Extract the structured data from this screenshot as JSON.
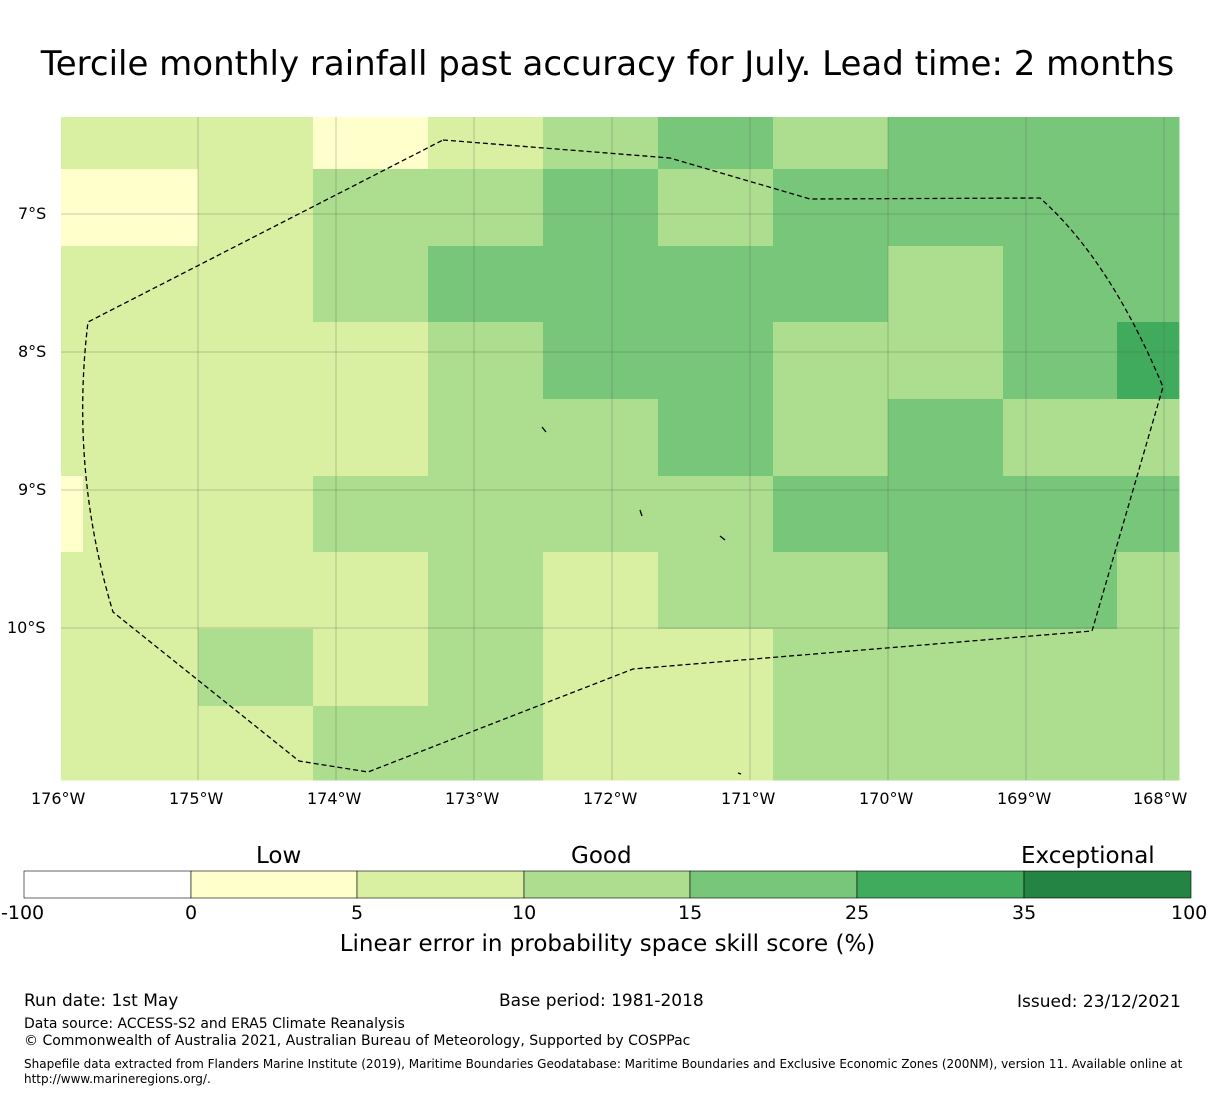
{
  "title": "Tercile monthly rainfall past accuracy for July. Lead time: 2 months",
  "map": {
    "lat_labels": [
      "7°S",
      "8°S",
      "9°S",
      "10°S"
    ],
    "lon_labels": [
      "176°W",
      "175°W",
      "174°W",
      "173°W",
      "172°W",
      "171°W",
      "170°W",
      "169°W",
      "168°W"
    ],
    "bin_colors": [
      "#ffffff",
      "#ffffcc",
      "#d9f0a3",
      "#addd8e",
      "#78c679",
      "#41ab5d",
      "#238443"
    ],
    "cells": [
      [
        2,
        2,
        1,
        2,
        3,
        4,
        3,
        4,
        4
      ],
      [
        1,
        2,
        3,
        3,
        4,
        3,
        4,
        4,
        4
      ],
      [
        2,
        2,
        3,
        4,
        4,
        4,
        4,
        3,
        4
      ],
      [
        2,
        2,
        2,
        3,
        4,
        4,
        3,
        3,
        4
      ],
      [
        2,
        2,
        2,
        3,
        3,
        4,
        3,
        4,
        3
      ],
      [
        2,
        2,
        3,
        3,
        3,
        3,
        4,
        4,
        4
      ],
      [
        2,
        2,
        2,
        3,
        2,
        3,
        3,
        4,
        4
      ],
      [
        2,
        3,
        2,
        3,
        2,
        2,
        3,
        3,
        3
      ],
      [
        2,
        2,
        3,
        3,
        2,
        2,
        3,
        3,
        3
      ]
    ],
    "cell_overrides": [
      {
        "row": 1,
        "col": 0,
        "bin": 1
      },
      {
        "row": 3,
        "col": 8,
        "bin": 5
      },
      {
        "row": 5,
        "col": 0,
        "bin": 1
      },
      {
        "row": 7,
        "col": 0,
        "bin": 2
      },
      {
        "row": 8,
        "col": 7,
        "bin": 3
      }
    ]
  },
  "colorbar": {
    "category_labels": [
      "Low",
      "Good",
      "Exceptional"
    ],
    "ticks": [
      "-100",
      "0",
      "5",
      "10",
      "15",
      "25",
      "35",
      "100"
    ],
    "colors": [
      "#ffffff",
      "#ffffcc",
      "#d9f0a3",
      "#addd8e",
      "#78c679",
      "#41ab5d",
      "#238443"
    ],
    "title": "Linear error in probability space skill score (%)"
  },
  "footer": {
    "run_date": "Run date: 1st May",
    "base_period": "Base period: 1981-2018",
    "issued": "Issued: 23/12/2021",
    "data_source": "Data source: ACCESS-S2 and ERA5 Climate Reanalysis",
    "copyright": "© Commonwealth of Australia 2021, Australian Bureau of Meteorology, Supported by COSPPac",
    "shapefile": "Shapefile data extracted from Flanders Marine Institute (2019), Maritime Boundaries Geodatabase: Maritime Boundaries and Exclusive Economic Zones (200NM), version 11. Available online at http://www.marineregions.org/."
  }
}
